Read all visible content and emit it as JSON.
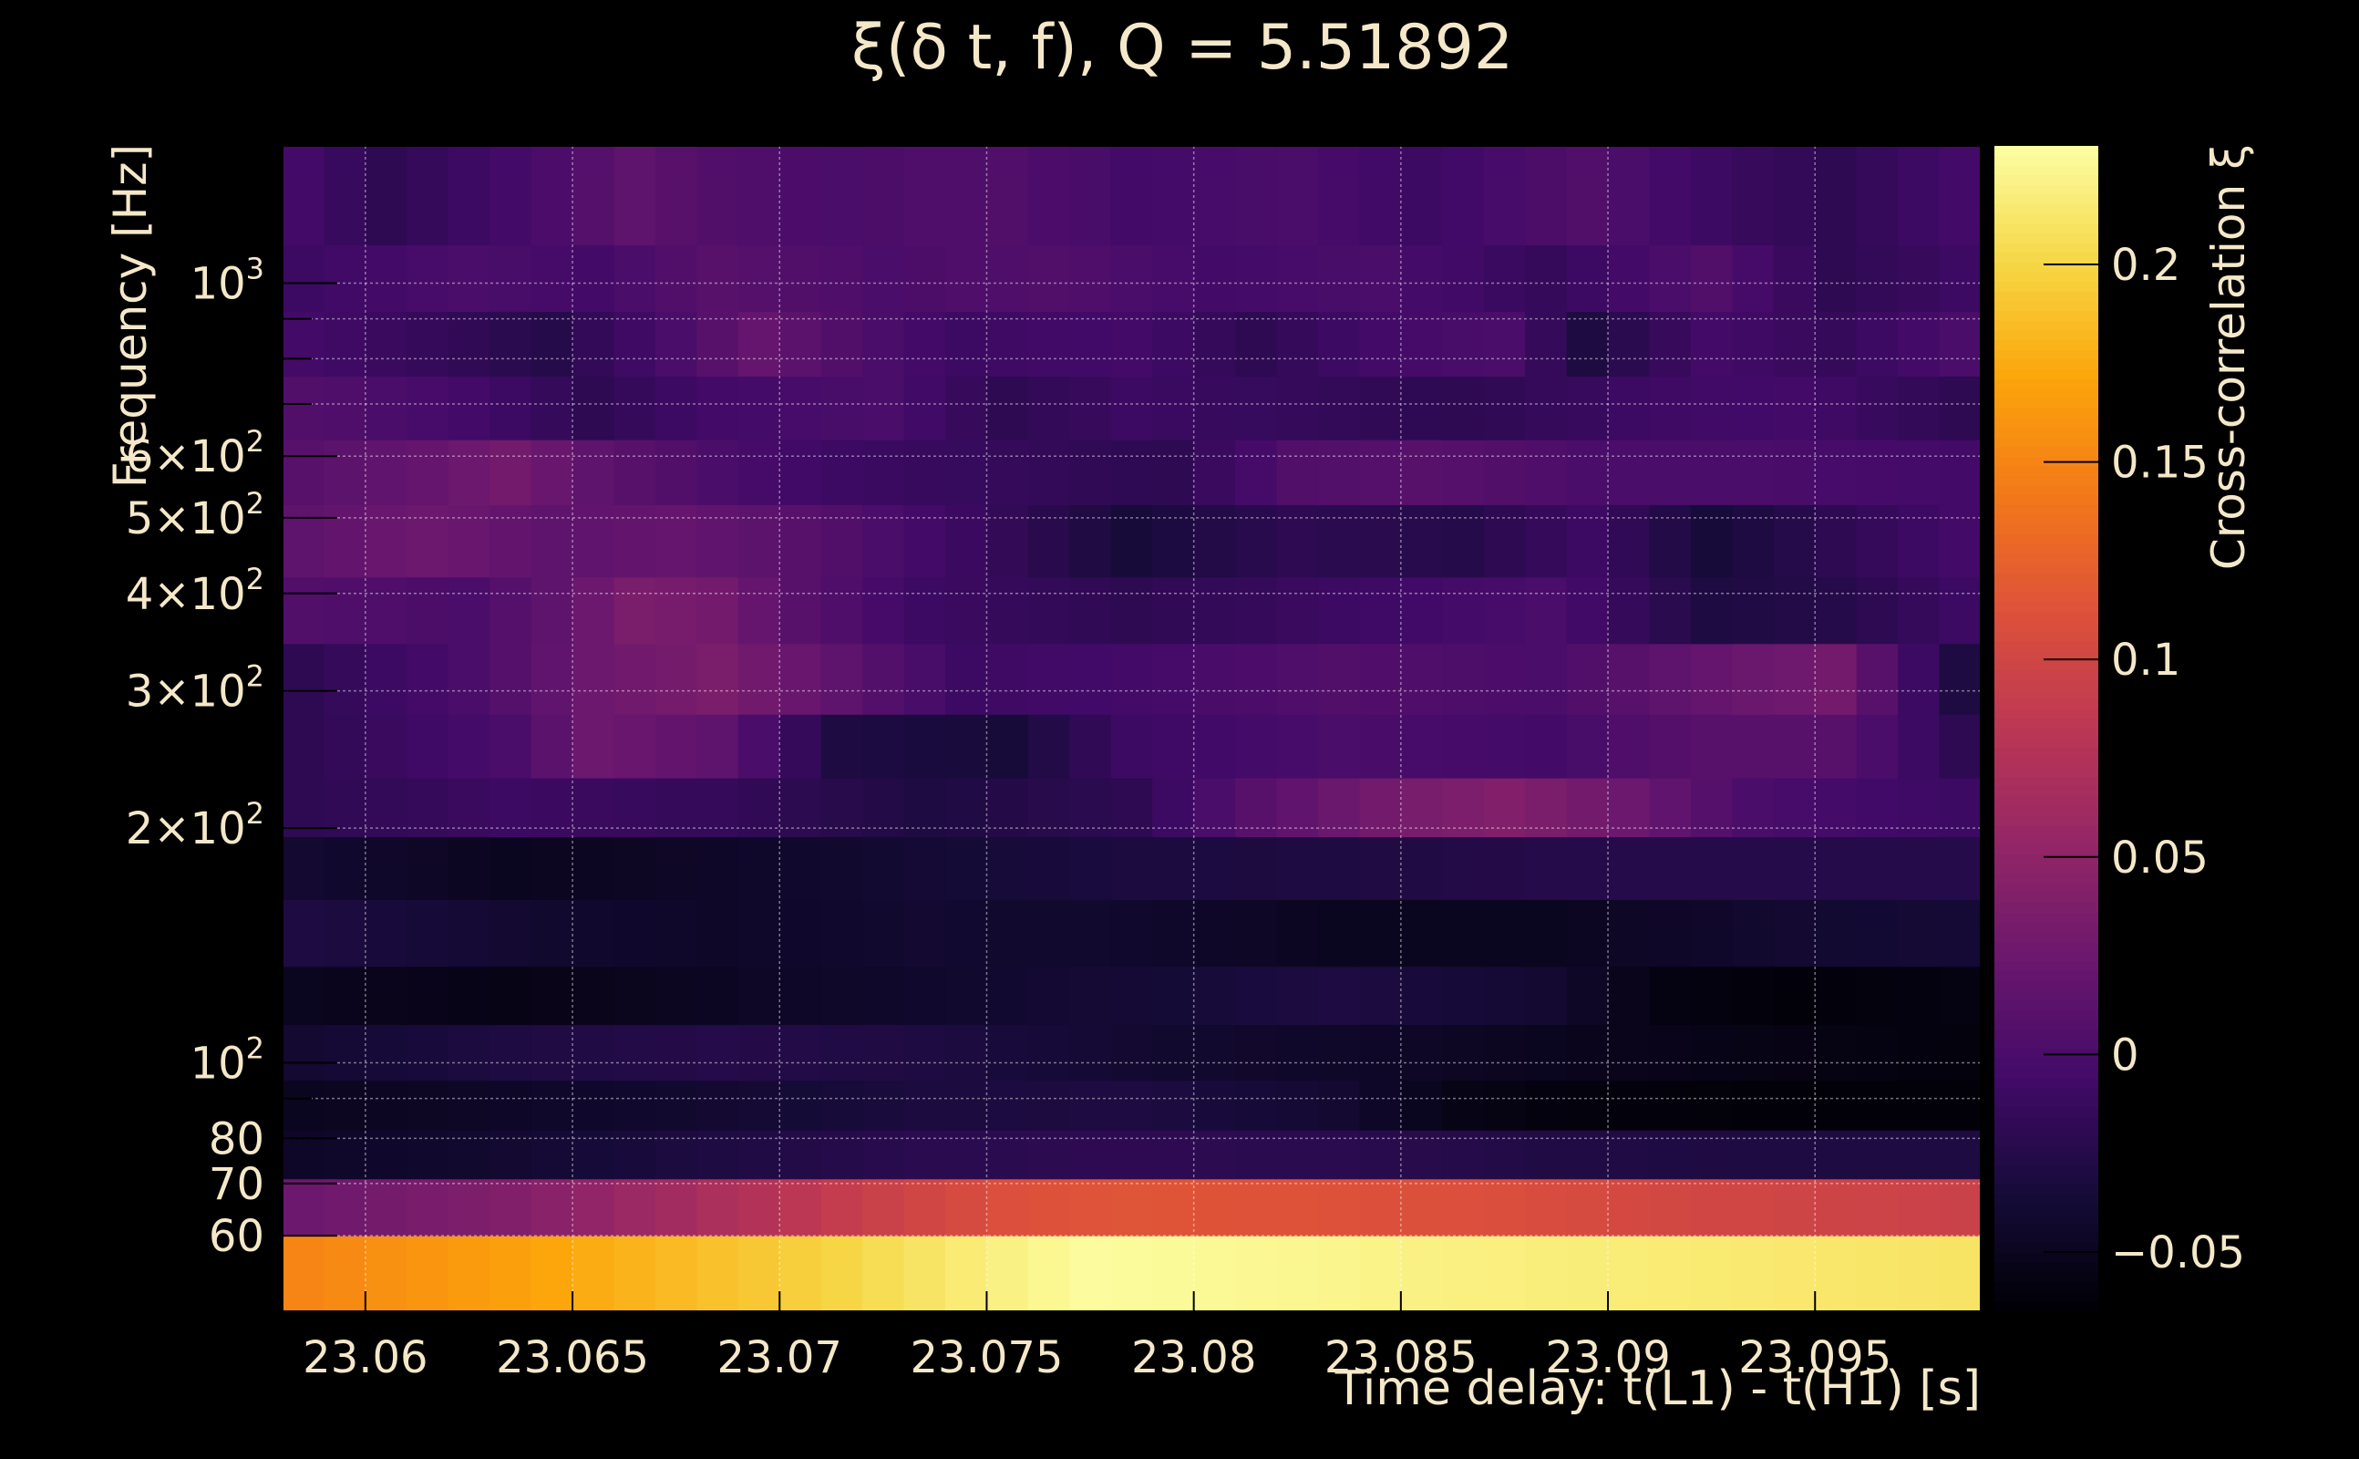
{
  "chart_data": {
    "type": "heatmap",
    "title": "ξ(δ t, f), Q = 5.51892",
    "xlabel": "Time delay: t(L1) - t(H1) [s]",
    "ylabel": "Frequency [Hz]",
    "colorbar_label": "Cross-correlation ξ",
    "xlim": [
      23.058,
      23.099
    ],
    "ylim": [
      48,
      1500
    ],
    "y_scale": "log",
    "grid": true,
    "colormap": "inferno",
    "clim": [
      -0.065,
      0.23
    ],
    "x_ticks": [
      {
        "value": 23.06,
        "label": "23.06"
      },
      {
        "value": 23.065,
        "label": "23.065"
      },
      {
        "value": 23.07,
        "label": "23.07"
      },
      {
        "value": 23.075,
        "label": "23.075"
      },
      {
        "value": 23.08,
        "label": "23.08"
      },
      {
        "value": 23.085,
        "label": "23.085"
      },
      {
        "value": 23.09,
        "label": "23.09"
      },
      {
        "value": 23.095,
        "label": "23.095"
      }
    ],
    "y_ticks": [
      {
        "value": 60,
        "label": "60"
      },
      {
        "value": 70,
        "label": "70"
      },
      {
        "value": 80,
        "label": "80"
      },
      {
        "value": 100,
        "label": "10",
        "sup": "2"
      },
      {
        "value": 200,
        "label": "2×10",
        "sup": "2"
      },
      {
        "value": 300,
        "label": "3×10",
        "sup": "2"
      },
      {
        "value": 400,
        "label": "4×10",
        "sup": "2"
      },
      {
        "value": 500,
        "label": "5×10",
        "sup": "2"
      },
      {
        "value": 600,
        "label": "6×10",
        "sup": "2"
      },
      {
        "value": 1000,
        "label": "10",
        "sup": "3"
      }
    ],
    "y_minor_ticks": [
      90,
      700,
      800,
      900
    ],
    "colorbar_ticks": [
      {
        "value": -0.05,
        "label": "−0.05"
      },
      {
        "value": 0,
        "label": "0"
      },
      {
        "value": 0.05,
        "label": "0.05"
      },
      {
        "value": 0.1,
        "label": "0.1"
      },
      {
        "value": 0.15,
        "label": "0.15"
      },
      {
        "value": 0.2,
        "label": "0.2"
      }
    ],
    "heatmap": {
      "x_start": 23.058,
      "x_end": 23.099,
      "columns": 41,
      "rows": [
        {
          "f_low": 48,
          "f_high": 60,
          "anchors": [
            [
              0,
              0.15
            ],
            [
              7,
              0.175
            ],
            [
              13,
              0.2
            ],
            [
              17,
              0.22
            ],
            [
              19,
              0.228
            ],
            [
              23,
              0.225
            ],
            [
              27,
              0.22
            ],
            [
              33,
              0.215
            ],
            [
              40,
              0.21
            ]
          ]
        },
        {
          "f_low": 60,
          "f_high": 71,
          "anchors": [
            [
              0,
              0.025
            ],
            [
              5,
              0.04
            ],
            [
              10,
              0.07
            ],
            [
              14,
              0.095
            ],
            [
              17,
              0.11
            ],
            [
              20,
              0.115
            ],
            [
              28,
              0.11
            ],
            [
              34,
              0.1
            ],
            [
              40,
              0.095
            ]
          ]
        },
        {
          "f_low": 71,
          "f_high": 82,
          "anchors": [
            [
              0,
              -0.045
            ],
            [
              5,
              -0.04
            ],
            [
              10,
              -0.03
            ],
            [
              15,
              -0.022
            ],
            [
              20,
              -0.02
            ],
            [
              25,
              -0.022
            ],
            [
              30,
              -0.028
            ],
            [
              35,
              -0.03
            ],
            [
              40,
              -0.03
            ]
          ]
        },
        {
          "f_low": 82,
          "f_high": 95,
          "anchors": [
            [
              0,
              -0.05
            ],
            [
              5,
              -0.045
            ],
            [
              10,
              -0.04
            ],
            [
              15,
              -0.032
            ],
            [
              20,
              -0.03
            ],
            [
              25,
              -0.04
            ],
            [
              28,
              -0.055
            ],
            [
              31,
              -0.06
            ],
            [
              35,
              -0.062
            ],
            [
              40,
              -0.062
            ]
          ]
        },
        {
          "f_low": 95,
          "f_high": 112,
          "anchors": [
            [
              0,
              -0.04
            ],
            [
              5,
              -0.03
            ],
            [
              10,
              -0.025
            ],
            [
              15,
              -0.03
            ],
            [
              20,
              -0.04
            ],
            [
              26,
              -0.045
            ],
            [
              30,
              -0.05
            ],
            [
              35,
              -0.055
            ],
            [
              40,
              -0.06
            ]
          ]
        },
        {
          "f_low": 112,
          "f_high": 133,
          "anchors": [
            [
              0,
              -0.05
            ],
            [
              5,
              -0.055
            ],
            [
              10,
              -0.048
            ],
            [
              15,
              -0.042
            ],
            [
              20,
              -0.038
            ],
            [
              25,
              -0.03
            ],
            [
              30,
              -0.04
            ],
            [
              33,
              -0.058
            ],
            [
              36,
              -0.062
            ],
            [
              40,
              -0.058
            ]
          ]
        },
        {
          "f_low": 133,
          "f_high": 162,
          "anchors": [
            [
              0,
              -0.03
            ],
            [
              5,
              -0.04
            ],
            [
              10,
              -0.045
            ],
            [
              15,
              -0.04
            ],
            [
              20,
              -0.042
            ],
            [
              25,
              -0.05
            ],
            [
              30,
              -0.05
            ],
            [
              33,
              -0.045
            ],
            [
              36,
              -0.04
            ],
            [
              40,
              -0.038
            ]
          ]
        },
        {
          "f_low": 162,
          "f_high": 195,
          "anchors": [
            [
              0,
              -0.04
            ],
            [
              5,
              -0.05
            ],
            [
              10,
              -0.045
            ],
            [
              15,
              -0.038
            ],
            [
              20,
              -0.032
            ],
            [
              25,
              -0.03
            ],
            [
              30,
              -0.025
            ],
            [
              35,
              -0.025
            ],
            [
              40,
              -0.025
            ]
          ]
        },
        {
          "f_low": 195,
          "f_high": 232,
          "anchors": [
            [
              0,
              -0.02
            ],
            [
              5,
              -0.01
            ],
            [
              10,
              -0.015
            ],
            [
              15,
              -0.03
            ],
            [
              20,
              -0.02
            ],
            [
              23,
              0.01
            ],
            [
              26,
              0.03
            ],
            [
              29,
              0.04
            ],
            [
              32,
              0.025
            ],
            [
              35,
              0.0
            ],
            [
              40,
              -0.01
            ]
          ]
        },
        {
          "f_low": 232,
          "f_high": 280,
          "anchors": [
            [
              0,
              -0.02
            ],
            [
              5,
              0.0
            ],
            [
              7,
              0.025
            ],
            [
              10,
              0.015
            ],
            [
              13,
              -0.03
            ],
            [
              17,
              -0.035
            ],
            [
              20,
              -0.01
            ],
            [
              25,
              0.0
            ],
            [
              30,
              -0.005
            ],
            [
              34,
              0.01
            ],
            [
              37,
              0.01
            ],
            [
              40,
              -0.02
            ]
          ]
        },
        {
          "f_low": 280,
          "f_high": 345,
          "anchors": [
            [
              0,
              -0.02
            ],
            [
              4,
              0.0
            ],
            [
              7,
              0.025
            ],
            [
              10,
              0.035
            ],
            [
              13,
              0.015
            ],
            [
              16,
              -0.01
            ],
            [
              20,
              -0.005
            ],
            [
              25,
              0.005
            ],
            [
              30,
              0.0
            ],
            [
              34,
              0.02
            ],
            [
              37,
              0.03
            ],
            [
              40,
              -0.03
            ]
          ]
        },
        {
          "f_low": 345,
          "f_high": 420,
          "anchors": [
            [
              0,
              0.005
            ],
            [
              4,
              0.0
            ],
            [
              6,
              0.015
            ],
            [
              8,
              0.035
            ],
            [
              10,
              0.03
            ],
            [
              12,
              0.01
            ],
            [
              15,
              -0.01
            ],
            [
              20,
              -0.02
            ],
            [
              25,
              -0.01
            ],
            [
              30,
              0.0
            ],
            [
              34,
              -0.03
            ],
            [
              37,
              -0.025
            ],
            [
              40,
              -0.01
            ]
          ]
        },
        {
          "f_low": 420,
          "f_high": 520,
          "anchors": [
            [
              0,
              0.015
            ],
            [
              3,
              0.025
            ],
            [
              6,
              0.015
            ],
            [
              9,
              0.02
            ],
            [
              12,
              0.01
            ],
            [
              15,
              -0.005
            ],
            [
              20,
              -0.035
            ],
            [
              24,
              -0.02
            ],
            [
              28,
              -0.025
            ],
            [
              31,
              -0.01
            ],
            [
              34,
              -0.035
            ],
            [
              37,
              -0.02
            ],
            [
              40,
              -0.005
            ]
          ]
        },
        {
          "f_low": 520,
          "f_high": 630,
          "anchors": [
            [
              0,
              0.01
            ],
            [
              3,
              0.02
            ],
            [
              5,
              0.03
            ],
            [
              7,
              0.015
            ],
            [
              10,
              0.0
            ],
            [
              13,
              -0.01
            ],
            [
              17,
              -0.015
            ],
            [
              21,
              -0.02
            ],
            [
              24,
              0.005
            ],
            [
              27,
              0.01
            ],
            [
              31,
              0.0
            ],
            [
              35,
              0.0
            ],
            [
              40,
              -0.005
            ]
          ]
        },
        {
          "f_low": 630,
          "f_high": 760,
          "anchors": [
            [
              0,
              0.005
            ],
            [
              4,
              -0.005
            ],
            [
              7,
              -0.02
            ],
            [
              10,
              -0.005
            ],
            [
              14,
              0.0
            ],
            [
              17,
              -0.02
            ],
            [
              20,
              -0.01
            ],
            [
              24,
              -0.015
            ],
            [
              28,
              -0.02
            ],
            [
              32,
              -0.01
            ],
            [
              36,
              -0.005
            ],
            [
              40,
              -0.02
            ]
          ]
        },
        {
          "f_low": 760,
          "f_high": 920,
          "anchors": [
            [
              0,
              -0.005
            ],
            [
              3,
              -0.015
            ],
            [
              6,
              -0.025
            ],
            [
              9,
              0.0
            ],
            [
              11,
              0.02
            ],
            [
              13,
              0.005
            ],
            [
              16,
              -0.01
            ],
            [
              20,
              -0.005
            ],
            [
              23,
              -0.02
            ],
            [
              26,
              -0.005
            ],
            [
              29,
              0.0
            ],
            [
              31,
              -0.03
            ],
            [
              34,
              -0.005
            ],
            [
              37,
              -0.015
            ],
            [
              40,
              0.0
            ]
          ]
        },
        {
          "f_low": 920,
          "f_high": 1120,
          "anchors": [
            [
              0,
              -0.01
            ],
            [
              4,
              0.0
            ],
            [
              7,
              -0.005
            ],
            [
              10,
              0.01
            ],
            [
              14,
              0.0
            ],
            [
              18,
              0.005
            ],
            [
              22,
              -0.005
            ],
            [
              26,
              0.0
            ],
            [
              30,
              -0.015
            ],
            [
              34,
              0.005
            ],
            [
              37,
              -0.02
            ],
            [
              40,
              -0.01
            ]
          ]
        },
        {
          "f_low": 1120,
          "f_high": 1500,
          "anchors": [
            [
              0,
              -0.005
            ],
            [
              2,
              -0.02
            ],
            [
              5,
              -0.005
            ],
            [
              8,
              0.015
            ],
            [
              10,
              0.005
            ],
            [
              13,
              0.0
            ],
            [
              17,
              0.005
            ],
            [
              20,
              -0.005
            ],
            [
              24,
              0.0
            ],
            [
              27,
              -0.01
            ],
            [
              31,
              0.005
            ],
            [
              34,
              -0.01
            ],
            [
              37,
              -0.02
            ],
            [
              40,
              -0.005
            ]
          ]
        }
      ]
    }
  }
}
